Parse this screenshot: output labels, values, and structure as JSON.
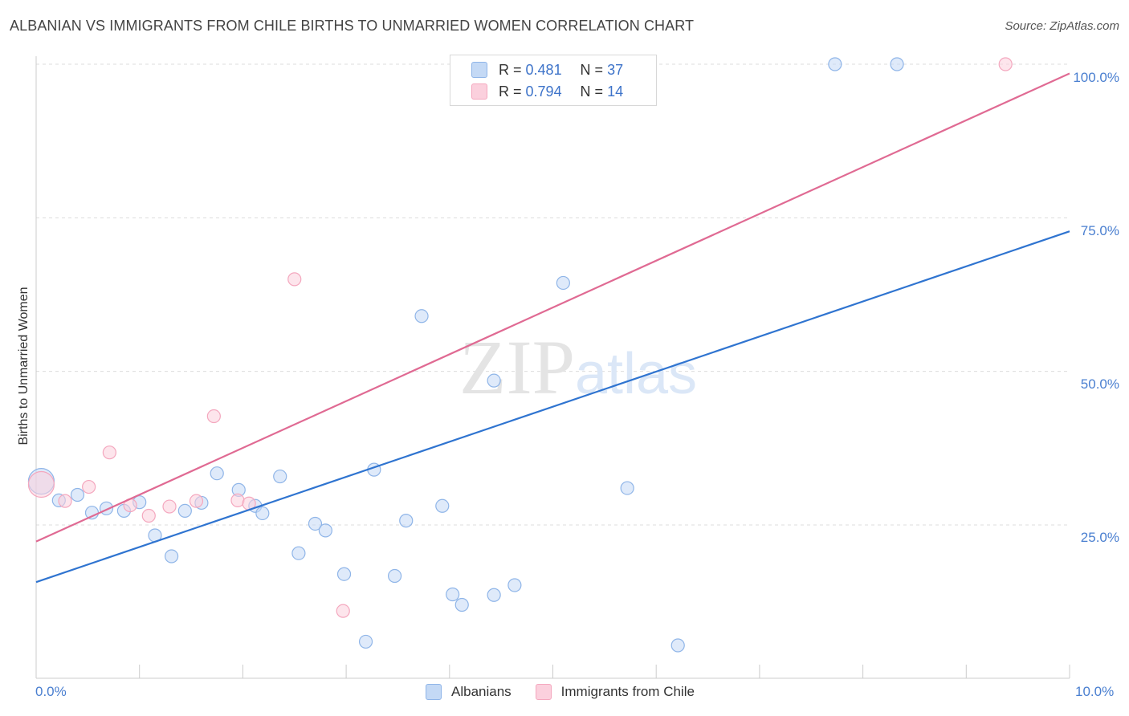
{
  "chart_data": {
    "type": "scatter",
    "title": "ALBANIAN VS IMMIGRANTS FROM CHILE BIRTHS TO UNMARRIED WOMEN CORRELATION CHART",
    "source": "Source: ZipAtlas.com",
    "ylabel": "Births to Unmarried Women",
    "xlabel": "",
    "xlim": [
      0,
      10
    ],
    "ylim": [
      0,
      102
    ],
    "x_tick_labels": [
      "0.0%",
      "10.0%"
    ],
    "y_tick_labels": [
      "25.0%",
      "50.0%",
      "75.0%",
      "100.0%"
    ],
    "y_tick_values": [
      25,
      50,
      75,
      100
    ],
    "grid": true,
    "watermark": "ZIPatlas",
    "legend_stats": [
      {
        "r_label": "R =",
        "r": "0.481",
        "n_label": "N =",
        "n": "37"
      },
      {
        "r_label": "R =",
        "r": "0.794",
        "n_label": "N =",
        "n": "14"
      }
    ],
    "series": [
      {
        "name": "Albanians",
        "color": "#8fb5e8",
        "line_color": "#2f74d0",
        "trend": {
          "x0": 0,
          "y0": 15.7,
          "x1": 10,
          "y1": 72.8
        },
        "points": [
          {
            "x": 0.05,
            "y": 32.1,
            "large": true
          },
          {
            "x": 0.22,
            "y": 29.0
          },
          {
            "x": 0.4,
            "y": 29.9
          },
          {
            "x": 0.54,
            "y": 27.0
          },
          {
            "x": 0.68,
            "y": 27.7
          },
          {
            "x": 0.85,
            "y": 27.3
          },
          {
            "x": 1.0,
            "y": 28.7
          },
          {
            "x": 1.15,
            "y": 23.3
          },
          {
            "x": 1.31,
            "y": 19.9
          },
          {
            "x": 1.44,
            "y": 27.3
          },
          {
            "x": 1.6,
            "y": 28.6
          },
          {
            "x": 1.75,
            "y": 33.4
          },
          {
            "x": 1.96,
            "y": 30.7
          },
          {
            "x": 2.12,
            "y": 28.1
          },
          {
            "x": 2.19,
            "y": 26.9
          },
          {
            "x": 2.36,
            "y": 32.9
          },
          {
            "x": 2.54,
            "y": 20.4
          },
          {
            "x": 2.7,
            "y": 25.2
          },
          {
            "x": 2.8,
            "y": 24.1
          },
          {
            "x": 2.98,
            "y": 17.0
          },
          {
            "x": 3.19,
            "y": 6.0
          },
          {
            "x": 3.27,
            "y": 34.0
          },
          {
            "x": 3.47,
            "y": 16.7
          },
          {
            "x": 3.58,
            "y": 25.7
          },
          {
            "x": 3.73,
            "y": 59.0
          },
          {
            "x": 3.93,
            "y": 28.1
          },
          {
            "x": 4.03,
            "y": 13.7
          },
          {
            "x": 4.12,
            "y": 12.0
          },
          {
            "x": 4.43,
            "y": 48.5
          },
          {
            "x": 4.43,
            "y": 13.6
          },
          {
            "x": 4.63,
            "y": 15.2
          },
          {
            "x": 4.91,
            "y": 100.0
          },
          {
            "x": 5.1,
            "y": 64.4
          },
          {
            "x": 5.72,
            "y": 31.0
          },
          {
            "x": 6.21,
            "y": 5.4
          },
          {
            "x": 7.73,
            "y": 100.0
          },
          {
            "x": 8.33,
            "y": 100.0
          }
        ]
      },
      {
        "name": "Immigrants from Chile",
        "color": "#f4a7be",
        "line_color": "#e06a93",
        "trend": {
          "x0": 0,
          "y0": 22.3,
          "x1": 10,
          "y1": 98.5
        },
        "points": [
          {
            "x": 0.05,
            "y": 31.6,
            "large": true
          },
          {
            "x": 0.28,
            "y": 28.9
          },
          {
            "x": 0.51,
            "y": 31.2
          },
          {
            "x": 0.71,
            "y": 36.8
          },
          {
            "x": 0.91,
            "y": 28.2
          },
          {
            "x": 1.09,
            "y": 26.5
          },
          {
            "x": 1.29,
            "y": 28.0
          },
          {
            "x": 1.55,
            "y": 28.9
          },
          {
            "x": 1.72,
            "y": 42.7
          },
          {
            "x": 1.95,
            "y": 29.0
          },
          {
            "x": 2.06,
            "y": 28.5
          },
          {
            "x": 2.5,
            "y": 65.0
          },
          {
            "x": 2.97,
            "y": 11.0
          },
          {
            "x": 9.38,
            "y": 100.0
          }
        ]
      }
    ]
  }
}
